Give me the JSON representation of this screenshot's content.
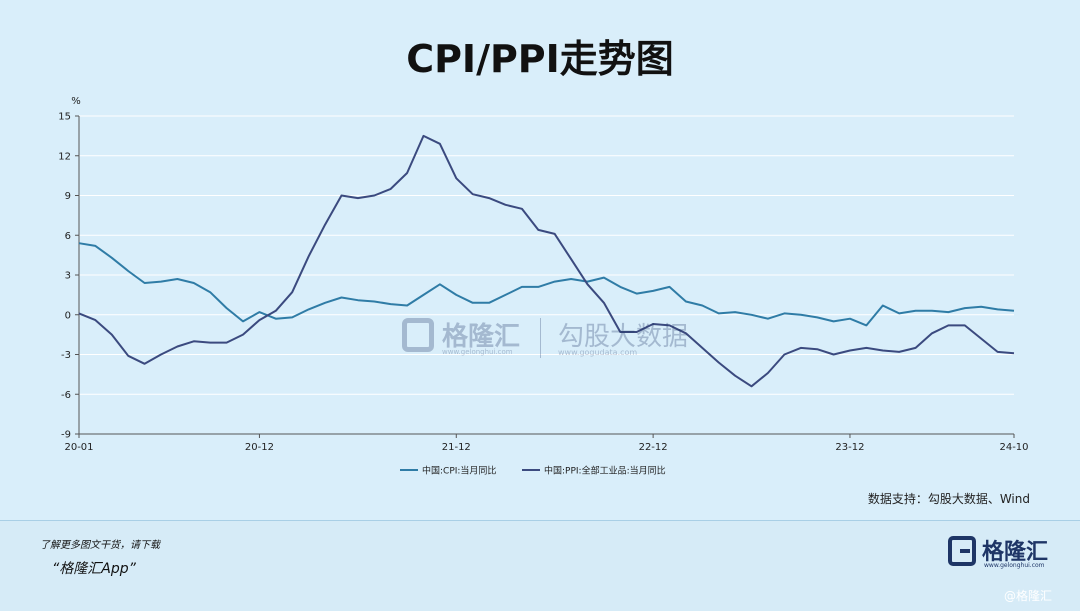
{
  "title": "CPI/PPI走势图",
  "source": "数据支持：勾股大数据、Wind",
  "promo": {
    "line1": "了解更多图文干货，请下载",
    "line2": "“格隆汇App”"
  },
  "brand": {
    "name": "格隆汇",
    "url": "www.gelonghui.com",
    "corner": "@格隆汇"
  },
  "watermark": {
    "name1": "格隆汇",
    "url1": "www.gelonghui.com",
    "name2": "勾股大数据",
    "url2": "www.gogudata.com"
  },
  "colors": {
    "cpi": "#2f7ca6",
    "ppi": "#3b4a7f",
    "grid": "#ffffff",
    "axis": "#555555"
  },
  "chart_data": {
    "type": "line",
    "ylabel": "%",
    "ylim": [
      -9,
      15
    ],
    "yticks": [
      15,
      12,
      9,
      6,
      3,
      0,
      -3,
      -6,
      -9
    ],
    "xticks": [
      {
        "label": "20-01",
        "index": 0
      },
      {
        "label": "20-12",
        "index": 11
      },
      {
        "label": "21-12",
        "index": 23
      },
      {
        "label": "22-12",
        "index": 35
      },
      {
        "label": "23-12",
        "index": 47
      },
      {
        "label": "24-10",
        "index": 57
      }
    ],
    "legend_position": "bottom-center",
    "grid": true,
    "series": [
      {
        "name": "中国:CPI:当月同比",
        "color": "#2f7ca6",
        "values": [
          5.4,
          5.2,
          4.3,
          3.3,
          2.4,
          2.5,
          2.7,
          2.4,
          1.7,
          0.5,
          -0.5,
          0.2,
          -0.3,
          -0.2,
          0.4,
          0.9,
          1.3,
          1.1,
          1.0,
          0.8,
          0.7,
          1.5,
          2.3,
          1.5,
          0.9,
          0.9,
          1.5,
          2.1,
          2.1,
          2.5,
          2.7,
          2.5,
          2.8,
          2.1,
          1.6,
          1.8,
          2.1,
          1.0,
          0.7,
          0.1,
          0.2,
          0.0,
          -0.3,
          0.1,
          0.0,
          -0.2,
          -0.5,
          -0.3,
          -0.8,
          0.7,
          0.1,
          0.3,
          0.3,
          0.2,
          0.5,
          0.6,
          0.4,
          0.3
        ]
      },
      {
        "name": "中国:PPI:全部工业品:当月同比",
        "color": "#3b4a7f",
        "values": [
          0.1,
          -0.4,
          -1.5,
          -3.1,
          -3.7,
          -3.0,
          -2.4,
          -2.0,
          -2.1,
          -2.1,
          -1.5,
          -0.4,
          0.3,
          1.7,
          4.4,
          6.8,
          9.0,
          8.8,
          9.0,
          9.5,
          10.7,
          13.5,
          12.9,
          10.3,
          9.1,
          8.8,
          8.3,
          8.0,
          6.4,
          6.1,
          4.2,
          2.3,
          0.9,
          -1.3,
          -1.3,
          -0.7,
          -0.8,
          -1.4,
          -2.5,
          -3.6,
          -4.6,
          -5.4,
          -4.4,
          -3.0,
          -2.5,
          -2.6,
          -3.0,
          -2.7,
          -2.5,
          -2.7,
          -2.8,
          -2.5,
          -1.4,
          -0.8,
          -0.8,
          -1.8,
          -2.8,
          -2.9
        ]
      }
    ]
  }
}
